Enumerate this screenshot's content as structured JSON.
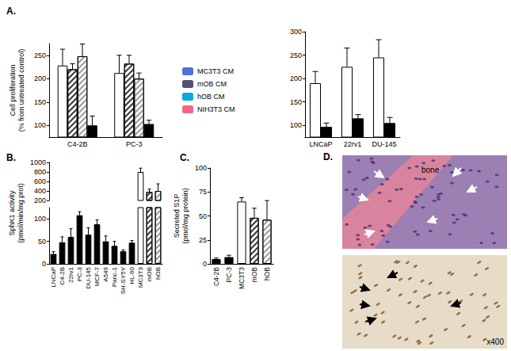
{
  "chart_data": [
    {
      "type": "bar",
      "title": "A.",
      "ylabel": "Cell proliferation\n(% from untreated control)",
      "categories": [
        "C4-2B",
        "PC-3"
      ],
      "series": [
        {
          "name": "MC3T3 CM",
          "color": "#ffffff",
          "values": [
            228,
            212
          ],
          "errors": [
            35,
            38
          ]
        },
        {
          "name": "mOB CM",
          "color": "#333333",
          "values": [
            220,
            232
          ],
          "errors": [
            12,
            18
          ]
        },
        {
          "name": "hOB CM",
          "color": "#999999",
          "values": [
            248,
            200
          ],
          "errors": [
            26,
            12
          ]
        },
        {
          "name": "NIH3T3 CM",
          "color": "#000000",
          "values": [
            100,
            103
          ],
          "errors": [
            20,
            8
          ]
        }
      ],
      "ylim": [
        75,
        275
      ],
      "yticks": [
        100,
        150,
        200,
        250
      ],
      "legend": "right"
    },
    {
      "type": "bar",
      "categories": [
        "LNCaP",
        "22rv1",
        "DU-145"
      ],
      "series": [
        {
          "name": "MC3T3 CM",
          "color": "#ffffff",
          "values": [
            190,
            225,
            245
          ],
          "errors": [
            25,
            40,
            38
          ]
        },
        {
          "name": "NIH3T3 CM",
          "color": "#000000",
          "values": [
            97,
            115,
            105
          ],
          "errors": [
            8,
            8,
            12
          ]
        }
      ],
      "ylim": [
        75,
        300
      ],
      "yticks": [
        100,
        150,
        200,
        250,
        300
      ]
    },
    {
      "type": "bar",
      "title": "B.",
      "ylabel": "SphK1 activity\n(pmol/min/mg prot)",
      "categories": [
        "LNCaP",
        "C4-2B",
        "22rv1",
        "PC-3",
        "DU-145",
        "MCF-7",
        "A549",
        "Panc-1",
        "SH-SY5Y",
        "HL-60",
        "MC3T3",
        "mOB",
        "hOB"
      ],
      "values": [
        22,
        48,
        60,
        108,
        65,
        88,
        50,
        40,
        28,
        47,
        800,
        380,
        400
      ],
      "errors": [
        5,
        12,
        18,
        8,
        15,
        10,
        12,
        10,
        3,
        5,
        80,
        60,
        150
      ],
      "colors": [
        "#000000",
        "#000000",
        "#000000",
        "#000000",
        "#000000",
        "#000000",
        "#000000",
        "#000000",
        "#000000",
        "#000000",
        "#ffffff",
        "#333333",
        "#999999"
      ],
      "ylim": [
        0,
        1000
      ],
      "ybreak": [
        125,
        200
      ],
      "yticks": [
        0,
        50,
        100,
        200,
        400,
        600,
        800,
        1000
      ]
    },
    {
      "type": "bar",
      "title": "C.",
      "ylabel": "Secreted S1P\n(pmol/mg protein)",
      "categories": [
        "C4-2B",
        "PC-3",
        "MC3T3",
        "mOB",
        "hOB"
      ],
      "values": [
        5,
        7,
        65,
        48,
        46
      ],
      "errors": [
        1,
        2,
        4,
        10,
        20
      ],
      "colors": [
        "#000000",
        "#000000",
        "#ffffff",
        "#333333",
        "#999999"
      ],
      "ylim": [
        0,
        100
      ],
      "yticks": [
        0,
        25,
        50,
        75,
        100
      ]
    }
  ],
  "panel_d": {
    "title": "D.",
    "images": [
      {
        "label": "bone"
      },
      {
        "label": "x400"
      }
    ]
  }
}
